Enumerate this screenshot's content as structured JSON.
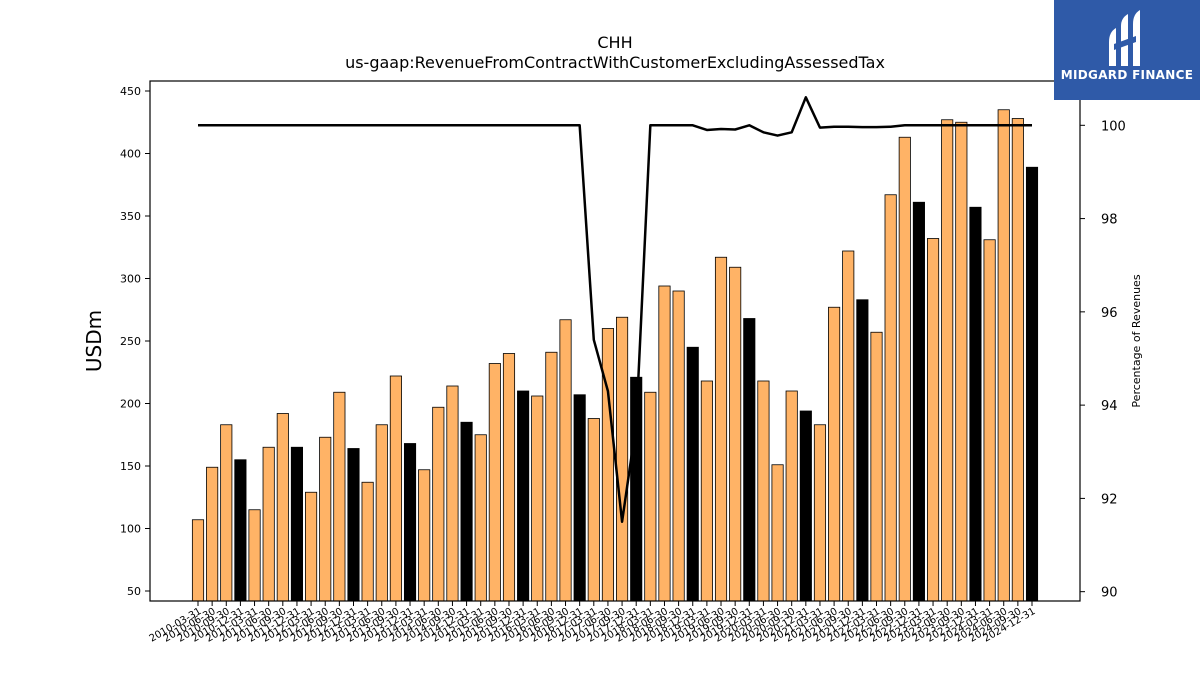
{
  "chart_data": {
    "type": "bar",
    "title": "CHH",
    "subtitle": "us-gaap:RevenueFromContractWithCustomerExcludingAssessedTax",
    "ylabel": "USDm",
    "y2label": "Percentage of Revenues",
    "ylim": [
      42,
      458
    ],
    "y2lim": [
      89.8,
      100.95
    ],
    "yticks": [
      50,
      100,
      150,
      200,
      250,
      300,
      350,
      400,
      450
    ],
    "y2ticks": [
      90,
      92,
      94,
      96,
      98,
      100
    ],
    "xtick_labels": [
      "2010-03-31",
      "2010-06-30",
      "2010-09-30",
      "2010-12-31",
      "2011-03-31",
      "2011-06-30",
      "2011-09-30",
      "2011-12-31",
      "2012-03-31",
      "2012-06-30",
      "2012-09-30",
      "2012-12-31",
      "2013-03-31",
      "2013-06-30",
      "2013-09-30",
      "2013-12-31",
      "2014-03-31",
      "2014-06-30",
      "2014-09-30",
      "2014-12-31",
      "2015-03-31",
      "2015-06-30",
      "2015-09-30",
      "2015-12-31",
      "2016-03-31",
      "2016-06-30",
      "2016-09-30",
      "2016-12-31",
      "2017-03-31",
      "2017-06-30",
      "2017-09-30",
      "2017-12-31",
      "2018-03-31",
      "2018-06-30",
      "2018-09-30",
      "2018-12-31",
      "2019-03-31",
      "2019-06-30",
      "2019-09-30",
      "2019-12-31",
      "2020-03-31",
      "2020-06-30",
      "2020-09-30",
      "2020-12-31",
      "2021-03-31",
      "2021-06-30",
      "2021-09-30",
      "2021-12-31",
      "2022-03-31",
      "2022-06-30",
      "2022-09-30",
      "2022-12-31",
      "2023-03-31",
      "2023-06-30",
      "2023-09-30",
      "2023-12-31",
      "2024-03-31",
      "2024-06-30",
      "2024-09-30",
      "2024-12-31"
    ],
    "series": [
      {
        "type": "bar",
        "values": [
          107,
          149,
          183,
          155,
          115,
          165,
          192,
          165,
          129,
          173,
          209,
          164,
          137,
          183,
          222,
          168,
          147,
          197,
          214,
          185,
          175,
          232,
          240,
          210,
          206,
          241,
          267,
          207,
          188,
          260,
          269,
          221,
          209,
          294,
          290,
          245,
          218,
          317,
          309,
          268,
          218,
          151,
          210,
          194,
          183,
          277,
          322,
          283,
          257,
          367,
          413,
          361,
          332,
          427,
          425,
          357,
          331,
          435,
          428,
          389
        ],
        "colors": {
          "orange": "#ffb366",
          "black": "#000000"
        }
      },
      {
        "type": "line",
        "axis": "right",
        "color": "#000000",
        "values": [
          100,
          100,
          100,
          100,
          100,
          100,
          100,
          100,
          100,
          100,
          100,
          100,
          100,
          100,
          100,
          100,
          100,
          100,
          100,
          100,
          100,
          100,
          100,
          100,
          100,
          100,
          100,
          100,
          95.4,
          94.3,
          91.5,
          93.6,
          100,
          100,
          100,
          100,
          99.9,
          99.92,
          99.91,
          100,
          99.85,
          99.78,
          99.85,
          100.6,
          99.95,
          99.97,
          99.97,
          99.96,
          99.96,
          99.97,
          100,
          100,
          100,
          100,
          100,
          100,
          100,
          100,
          100,
          100
        ]
      }
    ]
  },
  "logo": {
    "name": "MIDGARD FINANCE"
  }
}
